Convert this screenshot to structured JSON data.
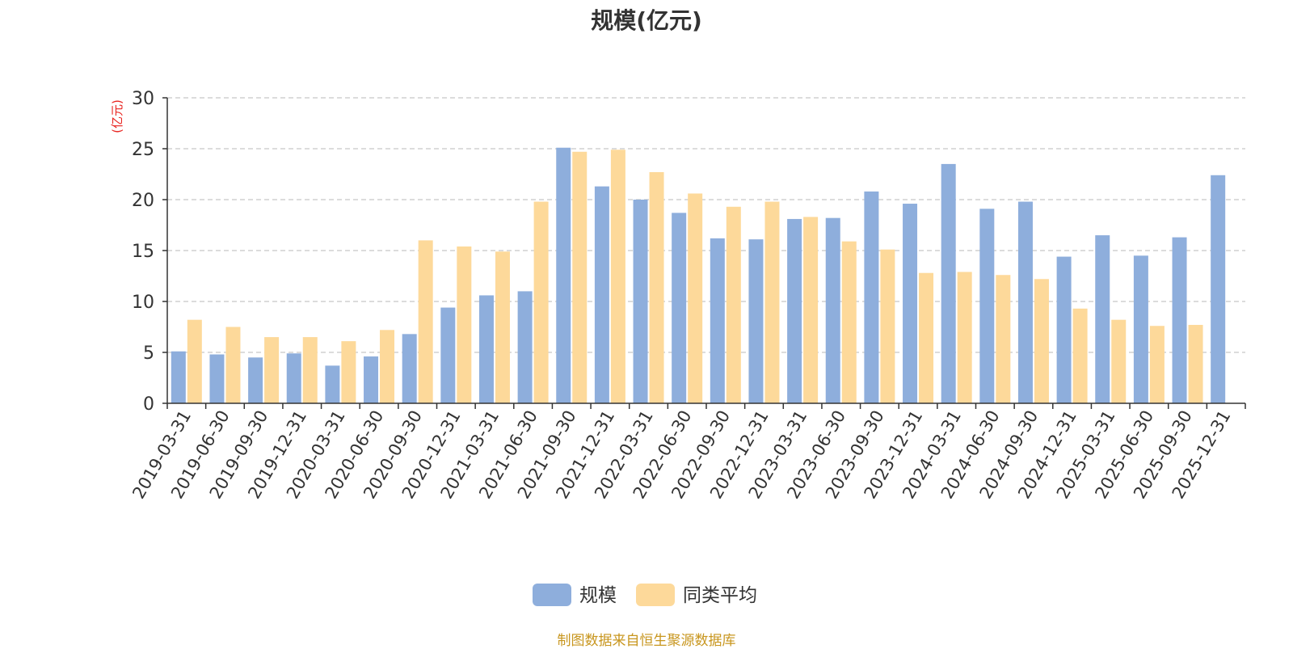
{
  "chart_data": {
    "type": "bar",
    "title": "规模(亿元)",
    "ylabel": "(亿元)",
    "ylim": [
      0,
      30
    ],
    "yticks": [
      0,
      5,
      10,
      15,
      20,
      25,
      30
    ],
    "grid": true,
    "legend_position": "bottom-center",
    "categories": [
      "2019-03-31",
      "2019-06-30",
      "2019-09-30",
      "2019-12-31",
      "2020-03-31",
      "2020-06-30",
      "2020-09-30",
      "2020-12-31",
      "2021-03-31",
      "2021-06-30",
      "2021-09-30",
      "2021-12-31",
      "2022-03-31",
      "2022-06-30",
      "2022-09-30",
      "2022-12-31",
      "2023-03-31",
      "2023-06-30",
      "2023-09-30",
      "2023-12-31",
      "2024-03-31",
      "2024-06-30",
      "2024-09-30",
      "2024-12-31",
      "2025-03-31",
      "2025-06-30",
      "2025-09-30",
      "2025-12-31"
    ],
    "series": [
      {
        "name": "规模",
        "color": "#8eaedc",
        "values": [
          5.1,
          4.8,
          4.5,
          4.9,
          3.7,
          4.6,
          6.8,
          9.4,
          10.6,
          11.0,
          25.1,
          21.3,
          20.0,
          18.7,
          16.2,
          16.1,
          18.1,
          18.2,
          20.8,
          19.6,
          23.5,
          19.1,
          19.8,
          14.4,
          16.5,
          14.5,
          16.3,
          22.4
        ]
      },
      {
        "name": "同类平均",
        "color": "#fdd99a",
        "values": [
          8.2,
          7.5,
          6.5,
          6.5,
          6.1,
          7.2,
          16.0,
          15.4,
          14.9,
          19.8,
          24.7,
          24.9,
          22.7,
          20.6,
          19.3,
          19.8,
          18.3,
          15.9,
          15.1,
          12.8,
          12.9,
          12.6,
          12.2,
          9.3,
          8.2,
          7.6,
          7.7,
          null
        ]
      }
    ]
  },
  "footer": {
    "source": "制图数据来自恒生聚源数据库"
  }
}
